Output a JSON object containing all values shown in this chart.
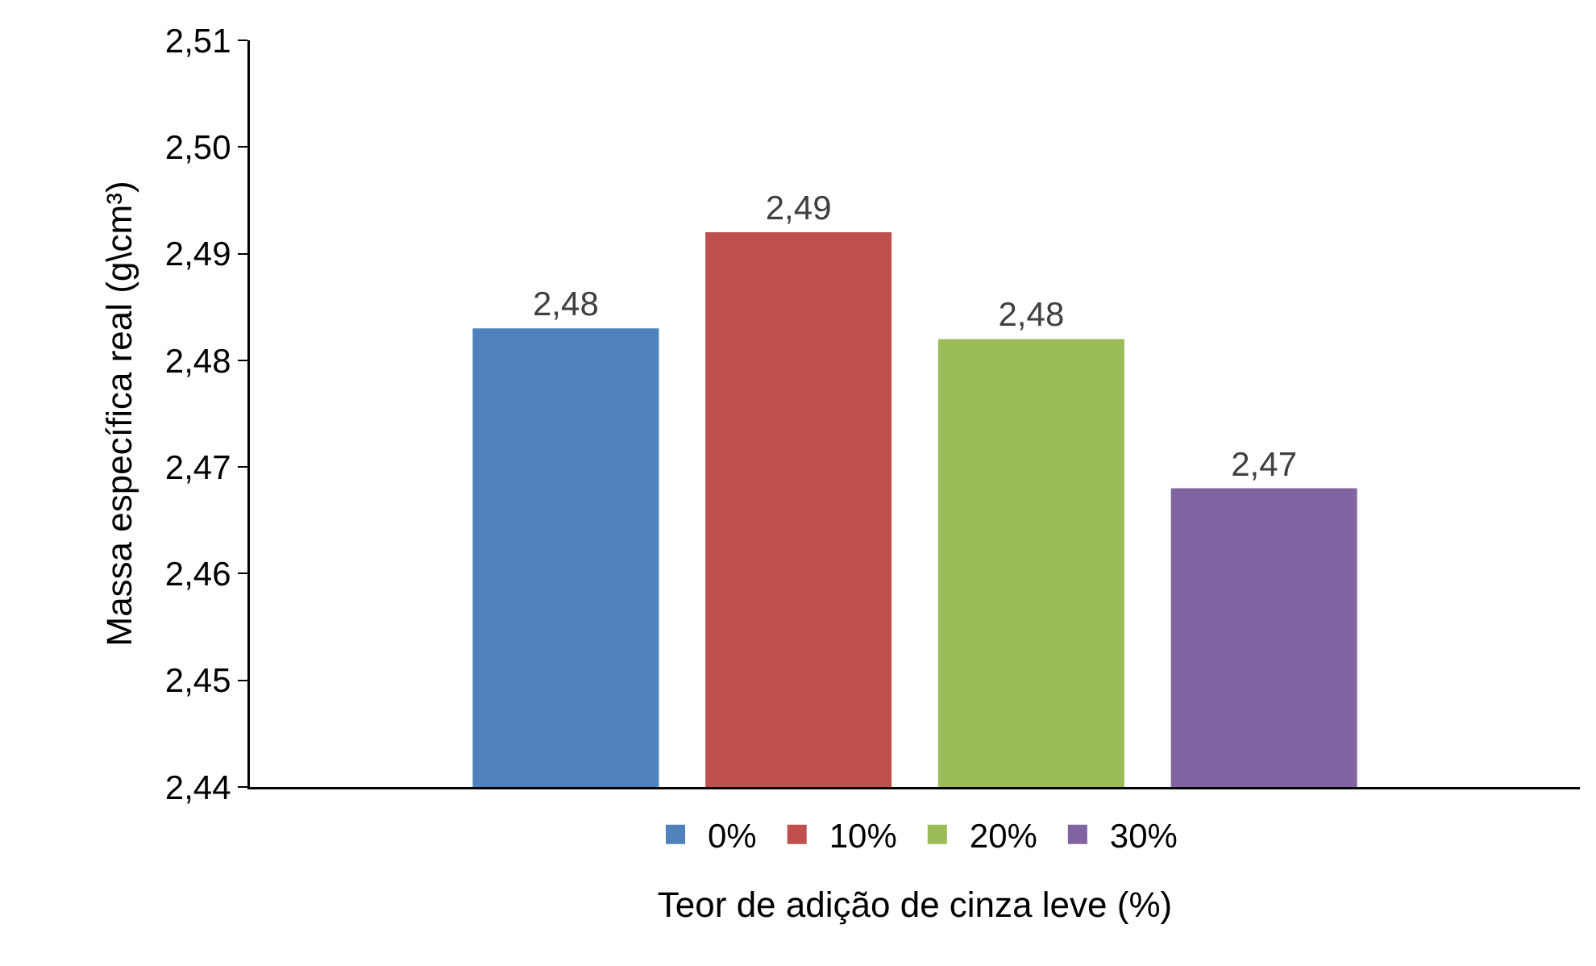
{
  "chart_data": {
    "type": "bar",
    "xlabel": "Teor de adição de cinza leve (%)",
    "ylabel": "Massa específica real (g\\cm³)",
    "categories": [
      null
    ],
    "series": [
      {
        "name": "0%",
        "color": "#4f81bd",
        "values": [
          2.483
        ],
        "value_labels": [
          "2,48"
        ]
      },
      {
        "name": "10%",
        "color": "#c0504d",
        "values": [
          2.492
        ],
        "value_labels": [
          "2,49"
        ]
      },
      {
        "name": "20%",
        "color": "#9bbb59",
        "values": [
          2.482
        ],
        "value_labels": [
          "2,48"
        ]
      },
      {
        "name": "30%",
        "color": "#8064a2",
        "values": [
          2.468
        ],
        "value_labels": [
          "2,47"
        ]
      }
    ],
    "ylim": [
      2.44,
      2.51
    ],
    "yticks": [
      {
        "value": 2.44,
        "label": "2,44"
      },
      {
        "value": 2.45,
        "label": "2,45"
      },
      {
        "value": 2.46,
        "label": "2,46"
      },
      {
        "value": 2.47,
        "label": "2,47"
      },
      {
        "value": 2.48,
        "label": "2,48"
      },
      {
        "value": 2.49,
        "label": "2,49"
      },
      {
        "value": 2.5,
        "label": "2,50"
      },
      {
        "value": 2.51,
        "label": "2,51"
      }
    ],
    "grid": false,
    "legend": "bottom"
  }
}
